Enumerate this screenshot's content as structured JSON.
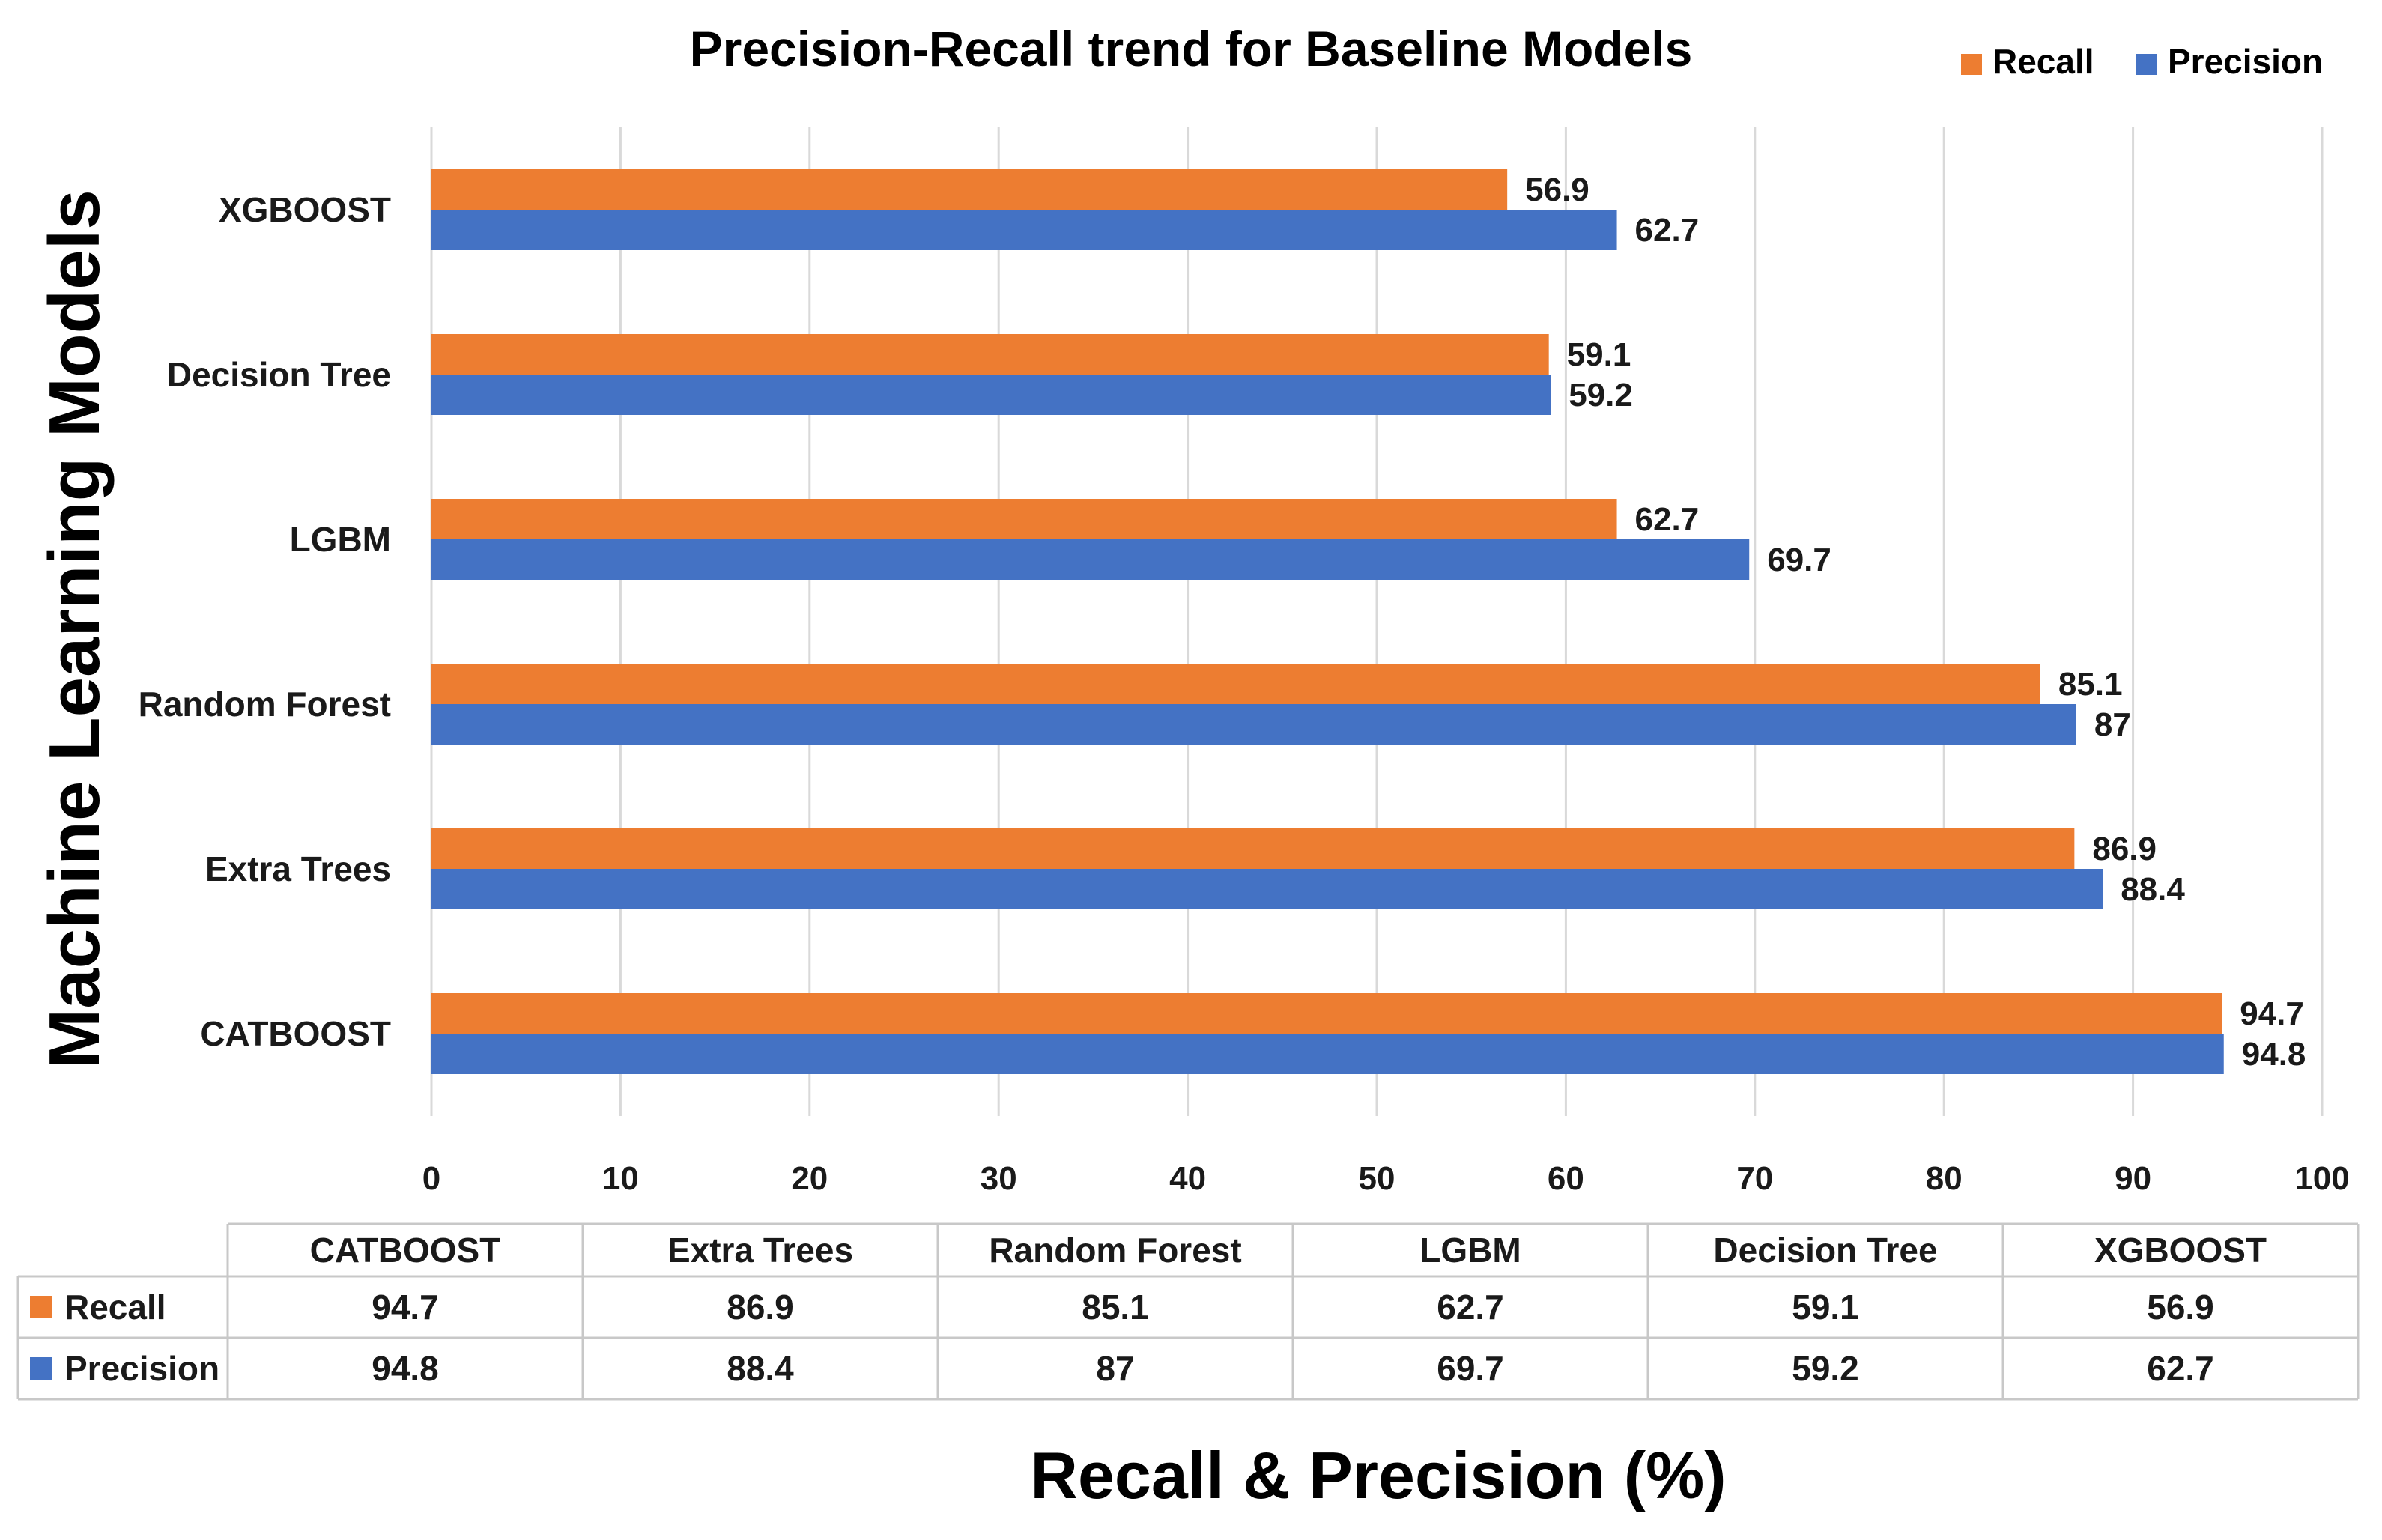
{
  "colors": {
    "recall": "#ED7D31",
    "precision": "#4472C4",
    "grid": "#d9d9d9",
    "text": "#1a1a1a"
  },
  "chart_data": {
    "type": "bar",
    "orientation": "horizontal",
    "title": "Precision-Recall trend for Baseline Models",
    "xlabel": "Recall & Precision (%)",
    "ylabel": "Machine Learning Models",
    "xlim": [
      0,
      100
    ],
    "x_ticks": [
      "0",
      "10",
      "20",
      "30",
      "40",
      "50",
      "60",
      "70",
      "80",
      "90",
      "100"
    ],
    "categories": [
      "CATBOOST",
      "Extra Trees",
      "Random Forest",
      "LGBM",
      "Decision Tree",
      "XGBOOST"
    ],
    "series": [
      {
        "name": "Recall",
        "values": [
          94.7,
          86.9,
          85.1,
          62.7,
          59.1,
          56.9
        ],
        "labels": [
          "94.7",
          "86.9",
          "85.1",
          "62.7",
          "59.1",
          "56.9"
        ]
      },
      {
        "name": "Precision",
        "values": [
          94.8,
          88.4,
          87,
          69.7,
          59.2,
          62.7
        ],
        "labels": [
          "94.8",
          "88.4",
          "87",
          "69.7",
          "59.2",
          "62.7"
        ]
      }
    ],
    "legend": {
      "position": "top-right",
      "order": [
        "Recall",
        "Precision"
      ]
    },
    "grid": true,
    "data_table": true
  }
}
